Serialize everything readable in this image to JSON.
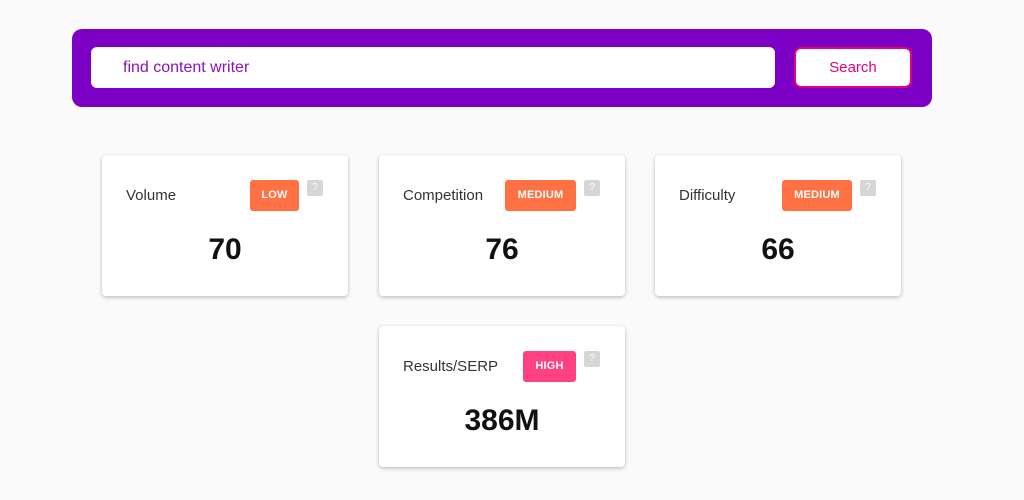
{
  "search": {
    "value": "find content writer",
    "button_label": "Search"
  },
  "metrics": [
    {
      "label": "Volume",
      "badge": "LOW",
      "badge_color": "#ff7043",
      "help": "?",
      "value": "70"
    },
    {
      "label": "Competition",
      "badge": "MEDIUM",
      "badge_color": "#ff7043",
      "help": "?",
      "value": "76"
    },
    {
      "label": "Difficulty",
      "badge": "MEDIUM",
      "badge_color": "#ff7043",
      "help": "?",
      "value": "66"
    },
    {
      "label": "Results/SERP",
      "badge": "HIGH",
      "badge_color": "#ff4081",
      "help": "?",
      "value": "386M"
    }
  ],
  "colors": {
    "search_bar": "#7b00c3",
    "accent": "#e6007a",
    "background": "#fafafa"
  }
}
